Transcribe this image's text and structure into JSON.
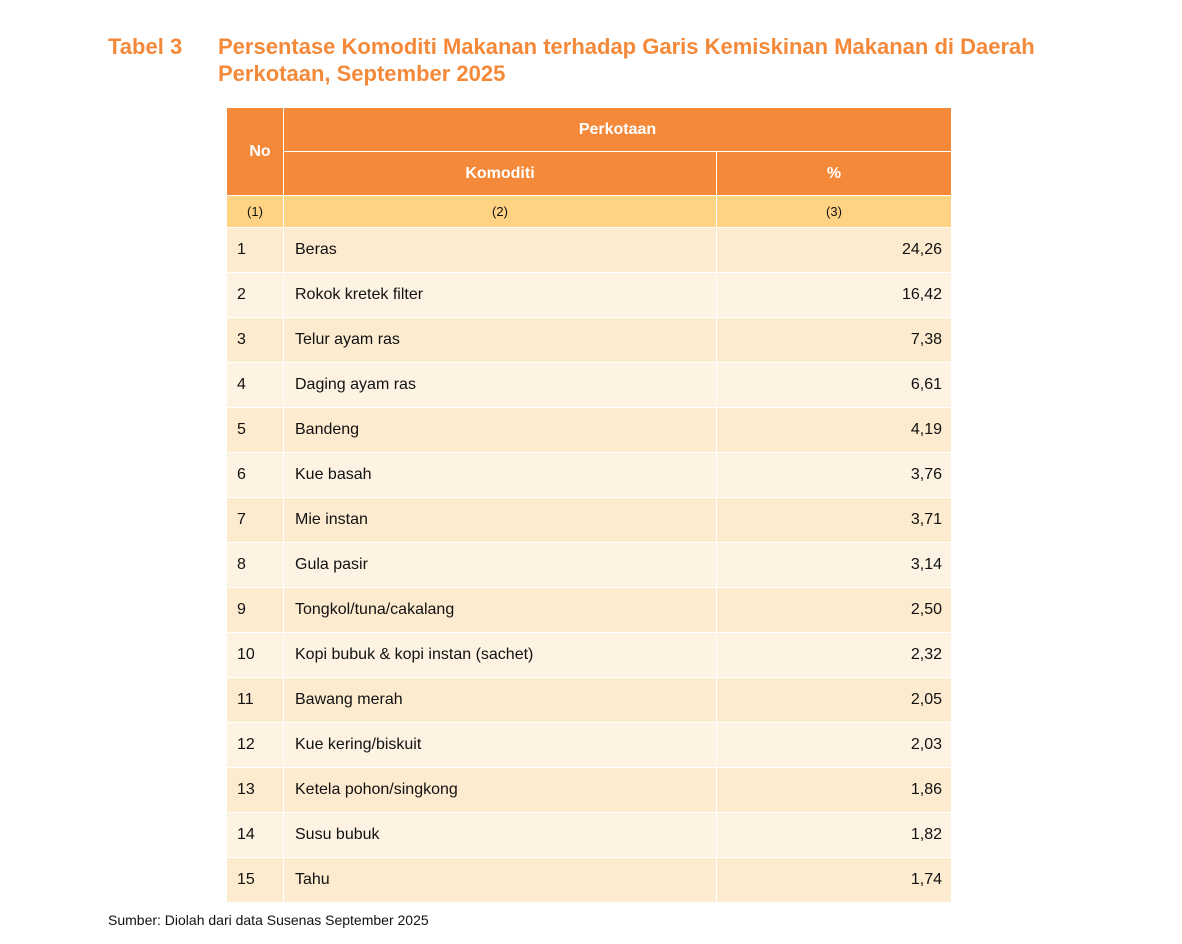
{
  "title": {
    "label": "Tabel 3",
    "text": "Persentase Komoditi Makanan terhadap Garis Kemiskinan Makanan di Daerah Perkotaan, September 2025"
  },
  "table": {
    "header_no": "No",
    "header_group": "Perkotaan",
    "header_komoditi": "Komoditi",
    "header_pct": "%",
    "col_numbers": [
      "(1)",
      "(2)",
      "(3)"
    ],
    "rows": [
      {
        "no": "1",
        "komoditi": "Beras",
        "pct": "24,26"
      },
      {
        "no": "2",
        "komoditi": "Rokok kretek filter",
        "pct": "16,42"
      },
      {
        "no": "3",
        "komoditi": "Telur ayam ras",
        "pct": "7,38"
      },
      {
        "no": "4",
        "komoditi": "Daging ayam ras",
        "pct": "6,61"
      },
      {
        "no": "5",
        "komoditi": "Bandeng",
        "pct": "4,19"
      },
      {
        "no": "6",
        "komoditi": "Kue basah",
        "pct": "3,76"
      },
      {
        "no": "7",
        "komoditi": "Mie instan",
        "pct": "3,71"
      },
      {
        "no": "8",
        "komoditi": "Gula pasir",
        "pct": "3,14"
      },
      {
        "no": "9",
        "komoditi": "Tongkol/tuna/cakalang",
        "pct": "2,50"
      },
      {
        "no": "10",
        "komoditi": "Kopi bubuk & kopi instan (sachet)",
        "pct": "2,32"
      },
      {
        "no": "11",
        "komoditi": "Bawang merah",
        "pct": "2,05"
      },
      {
        "no": "12",
        "komoditi": "Kue kering/biskuit",
        "pct": "2,03"
      },
      {
        "no": "13",
        "komoditi": "Ketela pohon/singkong",
        "pct": "1,86"
      },
      {
        "no": "14",
        "komoditi": "Susu bubuk",
        "pct": "1,82"
      },
      {
        "no": "15",
        "komoditi": "Tahu",
        "pct": "1,74"
      }
    ]
  },
  "source": "Sumber: Diolah dari data Susenas September 2025"
}
